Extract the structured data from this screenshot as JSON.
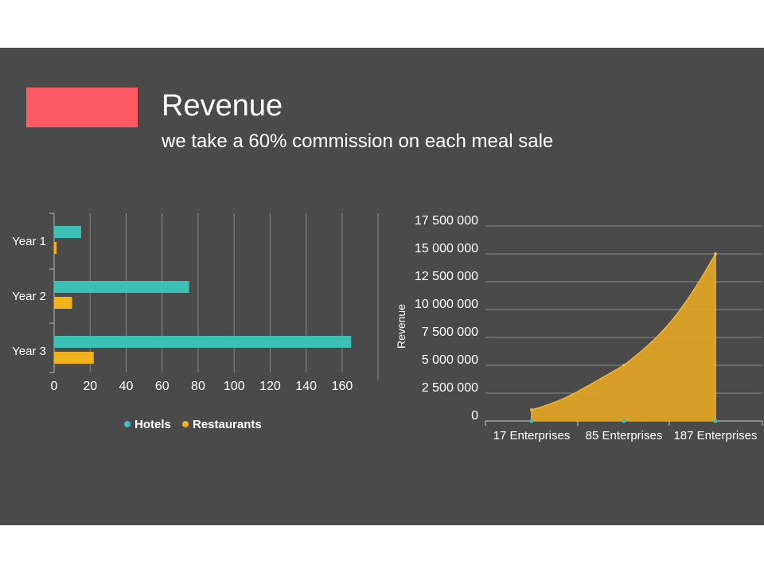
{
  "slide": {
    "title": "Revenue",
    "subtitle": "we take a 60% commission on each meal sale",
    "accent_color": "#ff5a64",
    "background": "#4a4a4a"
  },
  "chart_data": [
    {
      "type": "bar",
      "orientation": "horizontal",
      "categories": [
        "Year 1",
        "Year 2",
        "Year 3"
      ],
      "series": [
        {
          "name": "Hotels",
          "values": [
            15,
            75,
            165
          ],
          "color": "#3cc0b5"
        },
        {
          "name": "Restaurants",
          "values": [
            1,
            10,
            22
          ],
          "color": "#f2b31a"
        }
      ],
      "xlim": [
        0,
        170
      ],
      "xticks": [
        "0",
        "20",
        "40",
        "60",
        "80",
        "100",
        "120",
        "140",
        "160"
      ],
      "grid": "vertical",
      "legend": "bottom"
    },
    {
      "type": "area",
      "categories": [
        "17 Enterprises",
        "85 Enterprises",
        "187 Enterprises"
      ],
      "values": [
        1000000,
        5000000,
        15000000
      ],
      "ylabel": "Revenue",
      "ylim": [
        0,
        17500000
      ],
      "yticks": [
        "0",
        "2 500 000",
        "5 000 000",
        "7 500 000",
        "10 000 000",
        "12 500 000",
        "15 000 000",
        "17 500 000"
      ],
      "color": "#e2a424",
      "marker_color": "#3cc0b5",
      "grid": "horizontal"
    }
  ]
}
